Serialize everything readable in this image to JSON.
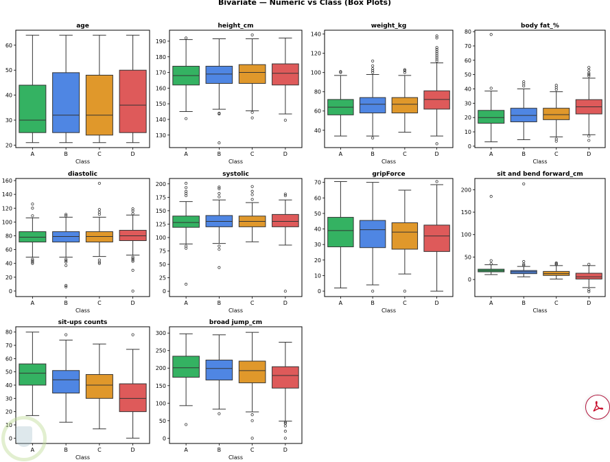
{
  "chart_data": {
    "type": "box",
    "title": "Bivariate — Numeric vs Class (Box Plots)",
    "categories": [
      "A",
      "B",
      "C",
      "D"
    ],
    "colors": {
      "A": "#34b262",
      "B": "#4f86e3",
      "C": "#e0982b",
      "D": "#de5a5a"
    },
    "xlabel": "Class",
    "panels": [
      {
        "title": "age",
        "ylim": [
          19,
          66
        ],
        "yticks": [
          20,
          30,
          40,
          50,
          60
        ],
        "boxes": [
          {
            "cat": "A",
            "wlo": 21,
            "q1": 25,
            "med": 30,
            "q3": 44,
            "whi": 64,
            "outliers": []
          },
          {
            "cat": "B",
            "wlo": 21,
            "q1": 25,
            "med": 32,
            "q3": 49,
            "whi": 64,
            "outliers": []
          },
          {
            "cat": "C",
            "wlo": 21,
            "q1": 24,
            "med": 32,
            "q3": 48,
            "whi": 64,
            "outliers": []
          },
          {
            "cat": "D",
            "wlo": 21,
            "q1": 25,
            "med": 36,
            "q3": 50,
            "whi": 64,
            "outliers": []
          }
        ]
      },
      {
        "title": "height_cm",
        "ylim": [
          122,
          197
        ],
        "yticks": [
          130,
          140,
          150,
          160,
          170,
          180,
          190
        ],
        "boxes": [
          {
            "cat": "A",
            "wlo": 145,
            "q1": 162,
            "med": 168,
            "q3": 174,
            "whi": 191,
            "outliers": [
              140.5,
              192
            ]
          },
          {
            "cat": "B",
            "wlo": 146.5,
            "q1": 163,
            "med": 169,
            "q3": 174,
            "whi": 191.5,
            "outliers": [
              144,
              143.5,
              125
            ]
          },
          {
            "cat": "C",
            "wlo": 145.5,
            "q1": 163,
            "med": 170,
            "q3": 175,
            "whi": 191.5,
            "outliers": [
              194,
              144.5,
              141
            ]
          },
          {
            "cat": "D",
            "wlo": 143.5,
            "q1": 162,
            "med": 169.5,
            "q3": 175.5,
            "whi": 192,
            "outliers": [
              139.5
            ]
          }
        ]
      },
      {
        "title": "weight_kg",
        "ylim": [
          22,
          144
        ],
        "yticks": [
          40,
          60,
          80,
          100,
          120,
          140
        ],
        "boxes": [
          {
            "cat": "A",
            "wlo": 34,
            "q1": 56,
            "med": 64,
            "q3": 72,
            "whi": 97,
            "outliers": [
              100,
              101
            ]
          },
          {
            "cat": "B",
            "wlo": 34,
            "q1": 58,
            "med": 67,
            "q3": 74,
            "whi": 98,
            "outliers": [
              100,
              102,
              104,
              107,
              112,
              32
            ]
          },
          {
            "cat": "C",
            "wlo": 38,
            "q1": 58,
            "med": 67,
            "q3": 74,
            "whi": 97,
            "outliers": [
              100,
              102,
              103
            ]
          },
          {
            "cat": "D",
            "wlo": 34,
            "q1": 62,
            "med": 72,
            "q3": 81,
            "whi": 110,
            "outliers": [
              112,
              114,
              116,
              118,
              120,
              122,
              124,
              126,
              136,
              138,
              26
            ]
          }
        ]
      },
      {
        "title": "body fat_%",
        "ylim": [
          -1,
          81
        ],
        "yticks": [
          0,
          10,
          20,
          30,
          40,
          50,
          60,
          70,
          80
        ],
        "boxes": [
          {
            "cat": "A",
            "wlo": 3,
            "q1": 16,
            "med": 20,
            "q3": 25,
            "whi": 38.5,
            "outliers": [
              40.5,
              78
            ]
          },
          {
            "cat": "B",
            "wlo": 4.5,
            "q1": 17,
            "med": 21.5,
            "q3": 26.5,
            "whi": 40,
            "outliers": [
              42,
              43.5,
              45
            ]
          },
          {
            "cat": "C",
            "wlo": 6.5,
            "q1": 18.5,
            "med": 22,
            "q3": 26.5,
            "whi": 38,
            "outliers": [
              39.5,
              41,
              42.5,
              5,
              3.5
            ]
          },
          {
            "cat": "D",
            "wlo": 8,
            "q1": 22.5,
            "med": 27.5,
            "q3": 32.5,
            "whi": 47.5,
            "outliers": [
              49,
              50,
              51,
              53,
              55,
              7,
              4
            ]
          }
        ]
      },
      {
        "title": "diastolic",
        "ylim": [
          -8,
          163
        ],
        "yticks": [
          0,
          20,
          40,
          60,
          80,
          100,
          120,
          140,
          160
        ],
        "boxes": [
          {
            "cat": "A",
            "wlo": 49,
            "q1": 71,
            "med": 78,
            "q3": 86,
            "whi": 106,
            "outliers": [
              109,
              120,
              126,
              46,
              44,
              42,
              40
            ]
          },
          {
            "cat": "B",
            "wlo": 49,
            "q1": 71,
            "med": 79,
            "q3": 86,
            "whi": 107,
            "outliers": [
              109,
              111,
              46,
              44,
              42,
              37,
              8,
              6
            ]
          },
          {
            "cat": "C",
            "wlo": 50,
            "q1": 71,
            "med": 79,
            "q3": 86,
            "whi": 107,
            "outliers": [
              111,
              114,
              118,
              156,
              45,
              42,
              40
            ]
          },
          {
            "cat": "D",
            "wlo": 52,
            "q1": 73,
            "med": 80,
            "q3": 88,
            "whi": 110,
            "outliers": [
              112,
              116,
              119,
              49,
              47,
              45,
              43,
              30,
              0
            ]
          }
        ]
      },
      {
        "title": "systolic",
        "ylim": [
          -10,
          210
        ],
        "yticks": [
          0,
          25,
          50,
          75,
          100,
          125,
          150,
          175,
          200
        ],
        "boxes": [
          {
            "cat": "A",
            "wlo": 88,
            "q1": 119,
            "med": 128,
            "q3": 140,
            "whi": 167,
            "outliers": [
              178,
              182,
              186,
              193,
              201,
              84,
              80,
              13
            ]
          },
          {
            "cat": "B",
            "wlo": 89,
            "q1": 120,
            "med": 130,
            "q3": 141,
            "whi": 170,
            "outliers": [
              176,
              182,
              191,
              194,
              84,
              78,
              44
            ]
          },
          {
            "cat": "C",
            "wlo": 92,
            "q1": 120,
            "med": 130,
            "q3": 140,
            "whi": 165,
            "outliers": [
              171,
              180,
              186,
              195
            ]
          },
          {
            "cat": "D",
            "wlo": 86,
            "q1": 120,
            "med": 130,
            "q3": 143,
            "whi": 170,
            "outliers": [
              178,
              181,
              0
            ]
          }
        ]
      },
      {
        "title": "gripForce",
        "ylim": [
          -3.5,
          72.5
        ],
        "yticks": [
          0,
          10,
          20,
          30,
          40,
          50,
          60,
          70
        ],
        "boxes": [
          {
            "cat": "A",
            "wlo": 2,
            "q1": 28.5,
            "med": 39,
            "q3": 47.5,
            "whi": 70.5,
            "outliers": []
          },
          {
            "cat": "B",
            "wlo": 4,
            "q1": 28,
            "med": 39.5,
            "q3": 45.5,
            "whi": 70,
            "outliers": [
              0
            ]
          },
          {
            "cat": "C",
            "wlo": 11,
            "q1": 27,
            "med": 38,
            "q3": 44,
            "whi": 65,
            "outliers": [
              0
            ]
          },
          {
            "cat": "D",
            "wlo": 0,
            "q1": 25.5,
            "med": 35.5,
            "q3": 42.5,
            "whi": 68.5,
            "outliers": [
              70.5
            ]
          }
        ]
      },
      {
        "title": "sit and bend forward_cm",
        "ylim": [
          -38,
          225
        ],
        "yticks": [
          0,
          50,
          100,
          150,
          200
        ],
        "boxes": [
          {
            "cat": "A",
            "wlo": 11,
            "q1": 17,
            "med": 20,
            "q3": 23,
            "whi": 33,
            "outliers": [
              35,
              42,
              185
            ]
          },
          {
            "cat": "B",
            "wlo": 6,
            "q1": 13,
            "med": 17,
            "q3": 20,
            "whi": 29,
            "outliers": [
              31,
              34,
              40,
              213
            ]
          },
          {
            "cat": "C",
            "wlo": 1,
            "q1": 9,
            "med": 13,
            "q3": 18,
            "whi": 31,
            "outliers": [
              33,
              35,
              37
            ]
          },
          {
            "cat": "D",
            "wlo": -18,
            "q1": 1,
            "med": 6,
            "q3": 14,
            "whi": 31,
            "outliers": [
              34,
              -23,
              -27
            ]
          }
        ]
      },
      {
        "title": "sit-ups counts",
        "ylim": [
          -4,
          84
        ],
        "yticks": [
          0,
          10,
          20,
          30,
          40,
          50,
          60,
          70,
          80
        ],
        "boxes": [
          {
            "cat": "A",
            "wlo": 17,
            "q1": 40,
            "med": 49,
            "q3": 56,
            "whi": 80,
            "outliers": []
          },
          {
            "cat": "B",
            "wlo": 12,
            "q1": 34,
            "med": 44,
            "q3": 51,
            "whi": 74,
            "outliers": [
              78
            ]
          },
          {
            "cat": "C",
            "wlo": 7,
            "q1": 30,
            "med": 40,
            "q3": 48,
            "whi": 71,
            "outliers": []
          },
          {
            "cat": "D",
            "wlo": 0,
            "q1": 20,
            "med": 30,
            "q3": 41,
            "whi": 67,
            "outliers": [
              78
            ]
          }
        ]
      },
      {
        "title": "broad jump_cm",
        "ylim": [
          -15,
          318
        ],
        "yticks": [
          0,
          50,
          100,
          150,
          200,
          250,
          300
        ],
        "boxes": [
          {
            "cat": "A",
            "wlo": 93,
            "q1": 174,
            "med": 201,
            "q3": 234,
            "whi": 298,
            "outliers": [
              39
            ]
          },
          {
            "cat": "B",
            "wlo": 83,
            "q1": 166,
            "med": 199,
            "q3": 223,
            "whi": 295,
            "outliers": [
              70
            ]
          },
          {
            "cat": "C",
            "wlo": 75,
            "q1": 158,
            "med": 193,
            "q3": 220,
            "whi": 302,
            "outliers": [
              67,
              50,
              0
            ]
          },
          {
            "cat": "D",
            "wlo": 49,
            "q1": 143,
            "med": 179,
            "q3": 204,
            "whi": 274,
            "outliers": [
              45,
              42,
              35,
              20,
              0
            ]
          }
        ]
      }
    ]
  },
  "overlay": {
    "pdf_button_icon": "acrobat-pdf-icon",
    "watermark_icon": "shield-watermark-icon"
  }
}
